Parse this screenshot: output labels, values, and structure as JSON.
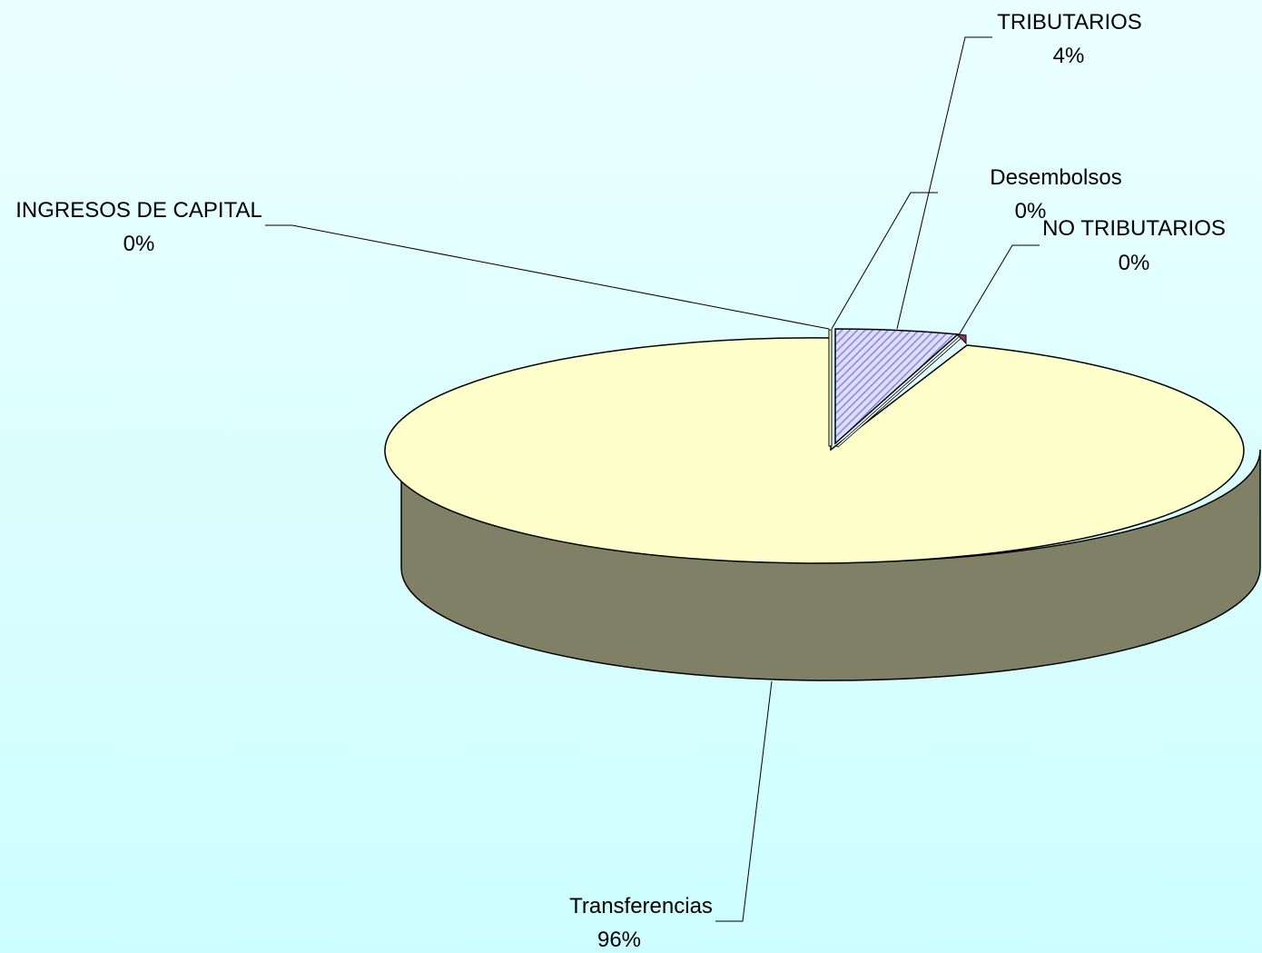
{
  "chart_data": {
    "type": "pie",
    "title": "",
    "series": [
      {
        "values": [
          96,
          4,
          0,
          0,
          0
        ],
        "categories": [
          "Transferencias",
          "TRIBUTARIOS",
          "Desembolsos",
          "NO TRIBUTARIOS",
          "INGRESOS DE CAPITAL"
        ]
      }
    ],
    "data_labels": [
      {
        "name": "Transferencias",
        "percent": "96%"
      },
      {
        "name": "TRIBUTARIOS",
        "percent": "4%"
      },
      {
        "name": "Desembolsos",
        "percent": "0%"
      },
      {
        "name": "NO TRIBUTARIOS",
        "percent": "0%"
      },
      {
        "name": "INGRESOS DE CAPITAL",
        "percent": "0%"
      }
    ],
    "colors": {
      "transferencias_top": "#ffffcc",
      "transferencias_side": "#808066",
      "tributarios": "#ccccff",
      "no_tributarios": "#993366",
      "background_top": "#ebffff",
      "background_bottom": "#cdfeff"
    },
    "style": "3d-exploded-pie",
    "legend": "none"
  }
}
